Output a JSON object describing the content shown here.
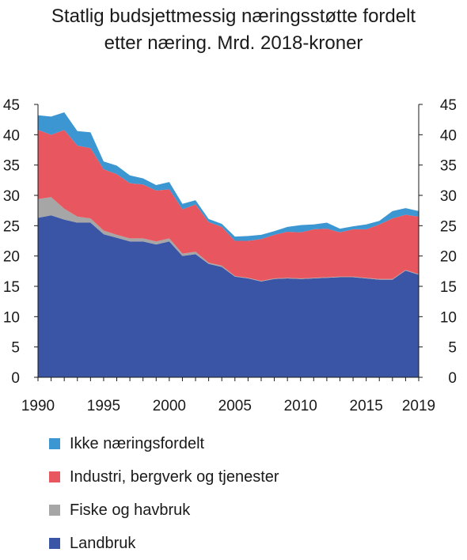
{
  "chart_data": {
    "type": "area",
    "title": "Statlig budsjettmessig næringsstøtte fordelt etter næring. Mrd. 2018-kroner",
    "title_lines": [
      "Statlig budsjettmessig næringsstøtte fordelt",
      "etter næring. Mrd. 2018-kroner"
    ],
    "xlabel": "",
    "ylabel": "",
    "stacked": true,
    "x": [
      1990,
      1991,
      1992,
      1993,
      1994,
      1995,
      1996,
      1997,
      1998,
      1999,
      2000,
      2001,
      2002,
      2003,
      2004,
      2005,
      2006,
      2007,
      2008,
      2009,
      2010,
      2011,
      2012,
      2013,
      2014,
      2015,
      2016,
      2017,
      2018,
      2019
    ],
    "x_ticks": [
      1990,
      1995,
      2000,
      2005,
      2010,
      2015,
      2019
    ],
    "ylim": [
      0,
      45
    ],
    "y_ticks": [
      0,
      5,
      10,
      15,
      20,
      25,
      30,
      35,
      40,
      45
    ],
    "grid": false,
    "legend_position": "bottom",
    "series": [
      {
        "name": "Landbruk",
        "color": "#3A55A6",
        "values": [
          26.3,
          26.7,
          26.0,
          25.5,
          25.5,
          23.6,
          23.0,
          22.4,
          22.4,
          21.9,
          22.4,
          20.0,
          20.3,
          18.7,
          18.2,
          16.6,
          16.3,
          15.8,
          16.2,
          16.3,
          16.2,
          16.3,
          16.4,
          16.5,
          16.5,
          16.3,
          16.1,
          16.1,
          17.6,
          16.9
        ]
      },
      {
        "name": "Fiske og havbruk",
        "color": "#A6A6A6",
        "values": [
          3.1,
          3.0,
          1.8,
          1.0,
          0.7,
          0.6,
          0.5,
          0.5,
          0.5,
          0.5,
          0.5,
          0.4,
          0.4,
          0.2,
          0.2,
          0.1,
          0.1,
          0.1,
          0.1,
          0.1,
          0.1,
          0.1,
          0.1,
          0.1,
          0.1,
          0.1,
          0.1,
          0.1,
          0.1,
          0.1
        ]
      },
      {
        "name": "Industri, bergverk og tjenester",
        "color": "#E8575F",
        "values": [
          11.4,
          10.3,
          13.0,
          11.7,
          11.6,
          10.1,
          10.0,
          9.1,
          8.9,
          8.4,
          8.1,
          7.3,
          7.8,
          6.7,
          6.4,
          5.8,
          6.1,
          6.9,
          7.2,
          7.6,
          7.6,
          8.0,
          8.0,
          7.3,
          7.8,
          8.0,
          9.0,
          10.0,
          9.1,
          9.5
        ]
      },
      {
        "name": "Ikke næringsfordelt",
        "color": "#3C96D2",
        "values": [
          2.4,
          3.0,
          2.9,
          2.4,
          2.6,
          1.3,
          1.4,
          1.3,
          1.0,
          0.9,
          1.2,
          0.9,
          0.7,
          0.5,
          0.5,
          0.7,
          0.8,
          0.7,
          0.6,
          0.8,
          1.2,
          0.8,
          1.0,
          0.6,
          0.5,
          0.8,
          0.6,
          1.2,
          1.1,
          0.9
        ]
      }
    ],
    "legend_order": [
      "Ikke næringsfordelt",
      "Industri, bergverk og tjenester",
      "Fiske og havbruk",
      "Landbruk"
    ]
  }
}
